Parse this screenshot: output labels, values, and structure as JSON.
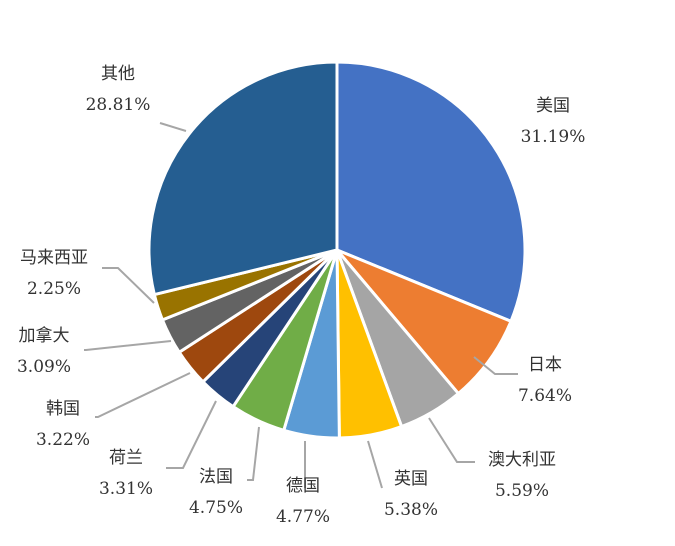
{
  "chart_data": {
    "type": "pie",
    "slices": [
      {
        "name": "美国",
        "value": 31.19,
        "pct": "31.19%",
        "color": "#4472C4"
      },
      {
        "name": "日本",
        "value": 7.64,
        "pct": "7.64%",
        "color": "#ED7D31"
      },
      {
        "name": "澳大利亚",
        "value": 5.59,
        "pct": "5.59%",
        "color": "#A5A5A5"
      },
      {
        "name": "英国",
        "value": 5.38,
        "pct": "5.38%",
        "color": "#FFC000"
      },
      {
        "name": "德国",
        "value": 4.77,
        "pct": "4.77%",
        "color": "#5B9BD5"
      },
      {
        "name": "法国",
        "value": 4.75,
        "pct": "4.75%",
        "color": "#70AD47"
      },
      {
        "name": "荷兰",
        "value": 3.31,
        "pct": "3.31%",
        "color": "#264478"
      },
      {
        "name": "韩国",
        "value": 3.22,
        "pct": "3.22%",
        "color": "#9E480E"
      },
      {
        "name": "加拿大",
        "value": 3.09,
        "pct": "3.09%",
        "color": "#636363"
      },
      {
        "name": "马来西亚",
        "value": 2.25,
        "pct": "2.25%",
        "color": "#997300"
      },
      {
        "name": "其他",
        "value": 28.81,
        "pct": "28.81%",
        "color": "#255E91"
      }
    ]
  }
}
